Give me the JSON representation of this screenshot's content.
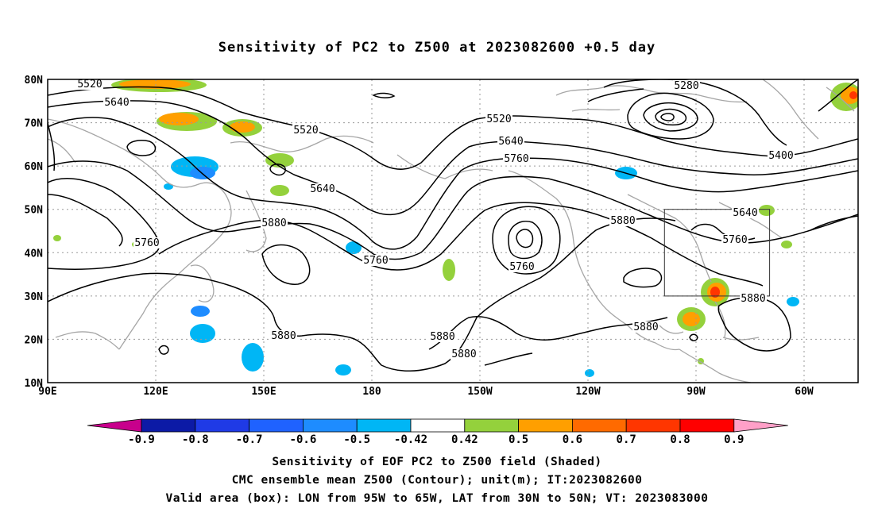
{
  "title": "Sensitivity of PC2 to Z500 at 2023082600 +0.5 day",
  "map": {
    "lat_labels": [
      "10N",
      "20N",
      "30N",
      "40N",
      "50N",
      "60N",
      "70N",
      "80N"
    ],
    "lon_labels": [
      "90E",
      "120E",
      "150E",
      "180",
      "150W",
      "120W",
      "90W",
      "60W"
    ],
    "grid": true,
    "valid_box": {
      "lon_min": -95,
      "lon_max": -65,
      "lat_min": 30,
      "lat_max": 50
    },
    "colors": {
      "coast": "#a6a6a6",
      "contour": "#000000",
      "grid": "#9a9a9a"
    }
  },
  "contour_labels": [
    "5520",
    "5640",
    "5520",
    "5640",
    "5880",
    "5760",
    "5760",
    "5880",
    "5520",
    "5640",
    "5760",
    "5760",
    "5880",
    "5880",
    "5880",
    "5880",
    "5280",
    "5400",
    "5640",
    "5760",
    "5880"
  ],
  "colorbar": {
    "labels": [
      "-0.9",
      "-0.8",
      "-0.7",
      "-0.6",
      "-0.5",
      "-0.42",
      "0.42",
      "0.5",
      "0.6",
      "0.7",
      "0.8",
      "0.9"
    ],
    "colors": [
      "#c8008c",
      "#0c1aa6",
      "#1f3ae6",
      "#1f62ff",
      "#1e8cff",
      "#00b6f5",
      "#ffffff",
      "#94d13c",
      "#ff9f00",
      "#ff6a00",
      "#ff3600",
      "#ff0000",
      "#ffa0c8"
    ]
  },
  "captions": [
    "Sensitivity of EOF PC2 to Z500 field (Shaded)",
    "CMC ensemble mean Z500 (Contour); unit(m); IT:2023082600",
    "Valid area (box): LON from 95W to 65W, LAT from 30N to 50N; VT: 2023083000"
  ]
}
